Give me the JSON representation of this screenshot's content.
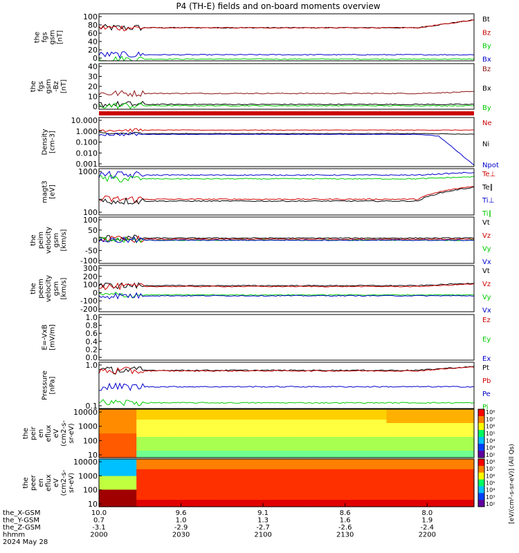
{
  "title": "P4 (TH-E) fields and on-board moments overview",
  "colors": {
    "black": "#000000",
    "red": "#cc0000",
    "green": "#00cc00",
    "blue": "#0000cc",
    "brown": "#8b1010"
  },
  "chart_data": [
    {
      "id": "fgs",
      "type": "line",
      "ylabel": [
        "the",
        "fgs",
        "gsm",
        "[nT]"
      ],
      "yticks": [
        "100",
        "80",
        "60",
        "40",
        "20",
        "0"
      ],
      "ylim": [
        -6,
        102
      ],
      "scale": "linear",
      "series": [
        {
          "name": "Bt",
          "color": "black",
          "base": 70,
          "end": 88
        },
        {
          "name": "Bz",
          "color": "red",
          "base": 70,
          "end": 88
        },
        {
          "name": "By",
          "color": "green",
          "base": -2,
          "end": -2
        },
        {
          "name": "Bx",
          "color": "blue",
          "base": 8,
          "end": 8
        }
      ]
    },
    {
      "id": "fgs2",
      "type": "line",
      "ylabel": [
        "the",
        "fgs",
        "gsm",
        "-Bz",
        "[nT]"
      ],
      "yticks": [
        "40",
        "30",
        "20",
        "10",
        "0"
      ],
      "ylim": [
        -5,
        47
      ],
      "scale": "linear",
      "series": [
        {
          "name": "Bz",
          "color": "brown",
          "base": 13,
          "end": 15
        },
        {
          "name": "Bx",
          "color": "black",
          "base": 0.5,
          "end": 0.5
        },
        {
          "name": "By",
          "color": "green",
          "base": -1,
          "end": -1
        }
      ]
    },
    {
      "id": "density",
      "type": "line",
      "ylabel": [
        "Density",
        "[cm-3]"
      ],
      "yticks": [
        "10.000",
        "1.000",
        "0.100",
        "0.010",
        "0.001"
      ],
      "ylim": [
        0.0005,
        60
      ],
      "scale": "log",
      "series": [
        {
          "name": "Ne",
          "color": "red",
          "base": 3,
          "end": 3
        },
        {
          "name": "Ni",
          "color": "black",
          "base": 1.3,
          "end": 1.1
        },
        {
          "name": "Npot",
          "color": "blue",
          "base": 1.1,
          "end": 0.0007
        }
      ]
    },
    {
      "id": "temp",
      "type": "line",
      "ylabel": [
        "magt3",
        "[eV]"
      ],
      "yticks": [
        "1000",
        "100"
      ],
      "ylim": [
        40,
        6000
      ],
      "scale": "log",
      "series": [
        {
          "name": "Te⊥",
          "color": "red",
          "base": 220,
          "end": 900
        },
        {
          "name": "Te∥",
          "color": "black",
          "base": 180,
          "end": 800
        },
        {
          "name": "Ti⊥",
          "color": "blue",
          "base": 3000,
          "end": 4000
        },
        {
          "name": "Ti∥",
          "color": "green",
          "base": 2000,
          "end": 2500
        }
      ]
    },
    {
      "id": "peim",
      "type": "line",
      "ylabel": [
        "the",
        "peim",
        "velocity",
        "gsm",
        "[km/s]"
      ],
      "yticks": [
        "100",
        "50",
        "0",
        "-50",
        "-100"
      ],
      "ylim": [
        -110,
        110
      ],
      "scale": "linear",
      "series": [
        {
          "name": "Vt",
          "color": "black",
          "base": 10,
          "end": 10
        },
        {
          "name": "Vz",
          "color": "red",
          "base": 5,
          "end": 5
        },
        {
          "name": "Vy",
          "color": "green",
          "base": 0,
          "end": 0
        },
        {
          "name": "Vx",
          "color": "blue",
          "base": 0,
          "end": 0
        }
      ]
    },
    {
      "id": "peem",
      "type": "line",
      "ylabel": [
        "the",
        "peem",
        "velocity",
        "gsm",
        "[km/s]"
      ],
      "yticks": [
        "300",
        "200",
        "100",
        "0",
        "-100",
        "-200"
      ],
      "ylim": [
        -230,
        320
      ],
      "scale": "linear",
      "series": [
        {
          "name": "Vt",
          "color": "black",
          "base": 80,
          "end": 110
        },
        {
          "name": "Vz",
          "color": "red",
          "base": 70,
          "end": 100
        },
        {
          "name": "Vy",
          "color": "green",
          "base": -30,
          "end": -30
        },
        {
          "name": "Vx",
          "color": "blue",
          "base": -40,
          "end": -40
        }
      ]
    },
    {
      "id": "efield",
      "type": "line",
      "ylabel": [
        "E=-VxB",
        "[mV/m]"
      ],
      "yticks": [
        "1.0",
        "0.8",
        "0.6",
        "0.4",
        "0.2",
        "0.0"
      ],
      "ylim": [
        -0.02,
        1.02
      ],
      "scale": "linear",
      "series": [
        {
          "name": "Ez",
          "color": "red"
        },
        {
          "name": "Ey",
          "color": "green"
        },
        {
          "name": "Ex",
          "color": "blue"
        }
      ]
    },
    {
      "id": "pressure",
      "type": "line",
      "ylabel": [
        "Pressure",
        "[nPa]"
      ],
      "yticks": [
        "1.0",
        "0.1"
      ],
      "ylim": [
        0.03,
        4
      ],
      "scale": "log",
      "series": [
        {
          "name": "Pt",
          "color": "black",
          "base": 1.7,
          "end": 2.5
        },
        {
          "name": "Pb",
          "color": "red",
          "base": 1.6,
          "end": 2.4
        },
        {
          "name": "Pe",
          "color": "blue",
          "base": 0.3,
          "end": 0.3
        },
        {
          "name": "Pi",
          "color": "green",
          "base": 0.055,
          "end": 0.055
        }
      ]
    },
    {
      "id": "peir",
      "type": "heatmap",
      "ylabel": [
        "the",
        "peir",
        "en",
        "eflux",
        "eV",
        "(cm2-s-",
        "sr-eV)"
      ],
      "yticks": [
        "10000",
        "1000",
        "100",
        "10"
      ],
      "ylim": [
        7,
        30000
      ],
      "scale": "log",
      "cbar_ticks": [
        "10⁸",
        "10⁷",
        "10⁶",
        "10⁵",
        "10⁴",
        "10³",
        "10²"
      ]
    },
    {
      "id": "peer",
      "type": "heatmap",
      "ylabel": [
        "the",
        "peer",
        "en",
        "eflux",
        "eV",
        "(cm2-s-",
        "sr-eV)"
      ],
      "yticks": [
        "10000",
        "1000",
        "100",
        "10"
      ],
      "ylim": [
        7,
        30000
      ],
      "scale": "log",
      "cbar_ticks": [
        "10⁸",
        "10⁷",
        "10⁶",
        "10⁵",
        "10⁴",
        "10³",
        "10²"
      ]
    }
  ],
  "colorbar_label": "[eV/(cm²-s-sr-eV)] (All Qs)",
  "xaxis": {
    "row_labels": [
      "the_X-GSM",
      "the_Y-GSM",
      "the_Z-GSM",
      "hhmm",
      "2024 May 28"
    ],
    "x_fractions": [
      0,
      0.2188,
      0.4375,
      0.6563,
      0.875
    ],
    "columns": [
      [
        "10.0",
        "0.7",
        "-3.1",
        "2000"
      ],
      [
        "9.6",
        "1.0",
        "-2.9",
        "2030"
      ],
      [
        "9.1",
        "1.3",
        "-2.7",
        "2100"
      ],
      [
        "8.6",
        "1.6",
        "-2.6",
        "2130"
      ],
      [
        "8.0",
        "1.9",
        "-2.4",
        "2200"
      ]
    ]
  }
}
